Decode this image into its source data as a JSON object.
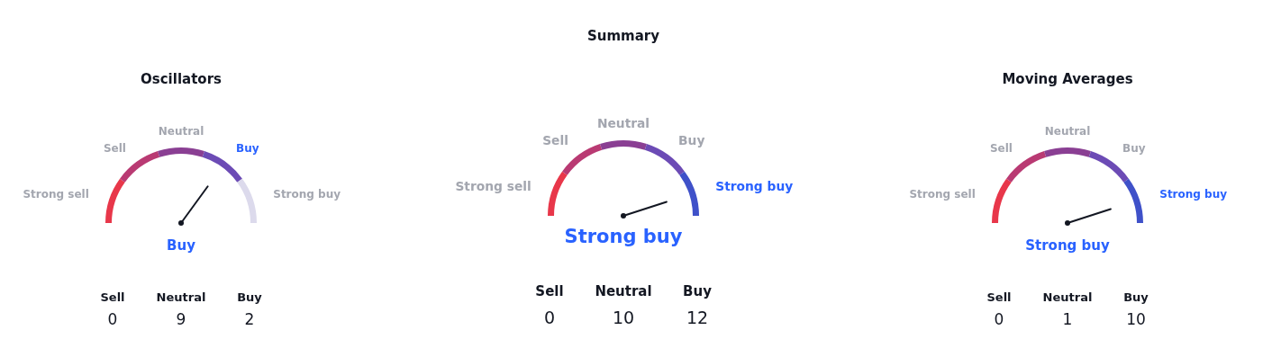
{
  "chart_data": [
    {
      "type": "donut",
      "title": "Oscillators",
      "categories": [
        "Strong sell",
        "Sell",
        "Neutral",
        "Buy",
        "Strong buy"
      ],
      "values": [
        20,
        20,
        20,
        20,
        20
      ],
      "colors": [
        "#e8374a",
        "#b93a73",
        "#8a3f93",
        "#6c4bb5",
        "#dcdaec"
      ],
      "needle": "Buy"
    },
    {
      "type": "other",
      "categories": [
        "Sell",
        "Neutral",
        "Buy"
      ],
      "values": [
        0,
        9,
        2
      ],
      "data_labels": true
    },
    {
      "type": "donut",
      "title": "Summary",
      "categories": [
        "Strong sell",
        "Sell",
        "Neutral",
        "Buy",
        "Strong buy"
      ],
      "values": [
        20,
        20,
        20,
        20,
        20
      ],
      "colors": [
        "#e8374a",
        "#b93a73",
        "#8a3f93",
        "#6c4bb5",
        "#3f51c9"
      ],
      "needle": "Strong buy"
    },
    {
      "type": "other",
      "categories": [
        "Sell",
        "Neutral",
        "Buy"
      ],
      "values": [
        0,
        10,
        12
      ],
      "data_labels": true
    },
    {
      "type": "donut",
      "title": "Moving Averages",
      "categories": [
        "Strong sell",
        "Sell",
        "Neutral",
        "Buy",
        "Strong buy"
      ],
      "values": [
        20,
        20,
        20,
        20,
        20
      ],
      "colors": [
        "#e8374a",
        "#b93a73",
        "#8a3f93",
        "#6c4bb5",
        "#3f51c9"
      ],
      "needle": "Strong buy"
    },
    {
      "type": "other",
      "categories": [
        "Sell",
        "Neutral",
        "Buy"
      ],
      "values": [
        0,
        1,
        10
      ],
      "data_labels": true
    }
  ]
}
